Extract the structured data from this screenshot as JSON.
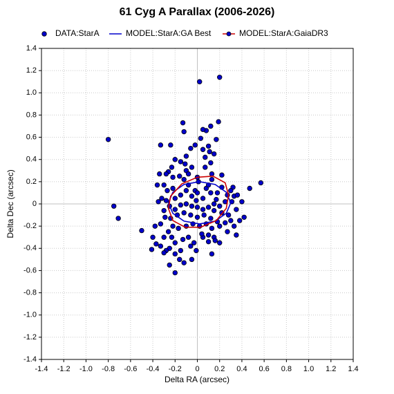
{
  "chart_data": {
    "type": "scatter",
    "title": "61 Cyg A Parallax (2006-2026)",
    "x_label": "Delta RA (arcsec)",
    "y_label": "Delta Dec (arcsec)",
    "xlim": [
      -1.4,
      1.4
    ],
    "ylim": [
      -1.4,
      1.4
    ],
    "xticks": [
      -1.4,
      -1.2,
      {
        "value": -1,
        "label": "-1.0"
      },
      -0.8,
      -0.6,
      -0.4,
      -0.2,
      0,
      0.2,
      0.4,
      0.6,
      0.8,
      {
        "value": 1,
        "label": "1.0"
      },
      1.2,
      1.4
    ],
    "yticks": [
      -1.4,
      -1.2,
      {
        "value": -1,
        "label": "-1.0"
      },
      -0.8,
      -0.6,
      -0.4,
      -0.2,
      0,
      0.2,
      0.4,
      0.6,
      0.8,
      {
        "value": 1,
        "label": "1.0"
      },
      1.2,
      1.4
    ],
    "grid": true,
    "legend": "top",
    "series": [
      {
        "name": "DATA:StarA",
        "type": "scatter",
        "color": "#0000cc",
        "x": [
          0.02,
          0.2,
          -0.8,
          -0.75,
          -0.71,
          0.57,
          0.47,
          0.4,
          -0.5,
          -0.41,
          -0.2,
          -0.12,
          -0.25,
          -0.16,
          0.35,
          0.42,
          0.38,
          0.19,
          0.12,
          0.08,
          0.05,
          -0.13,
          -0.12,
          -0.33,
          -0.24,
          0.17,
          0.03,
          0.1,
          0.05,
          -0.02,
          0.15,
          -0.06,
          0.11,
          0.07,
          0.12,
          -0.1,
          -0.15,
          -0.2,
          -0.11,
          -0.05,
          0.07,
          -0.1,
          -0.23,
          -0.26,
          -0.28,
          -0.16,
          -0.08,
          0.13,
          0.13,
          0.01,
          0,
          -0.36,
          -0.3,
          -0.27,
          -0.22,
          -0.12,
          -0.02,
          0.22,
          0.27,
          0.32,
          0.3,
          0.33,
          0.36,
          0.31,
          0.25,
          0.17,
          0.12,
          0.05,
          0,
          -0.05,
          -0.1,
          -0.15,
          -0.2,
          -0.28,
          -0.32,
          -0.35,
          -0.3,
          -0.25,
          -0.2,
          -0.15,
          -0.1,
          -0.05,
          0,
          0.05,
          0.1,
          0.15,
          0.2,
          0.22,
          0.28,
          0.35,
          0.33,
          0.3,
          0.25,
          0.18,
          0.12,
          0.06,
          0,
          -0.06,
          -0.12,
          -0.18,
          -0.24,
          -0.29,
          -0.33,
          -0.38,
          -0.4,
          -0.37,
          -0.33,
          -0.3,
          -0.26,
          -0.22,
          -0.17,
          -0.1,
          -0.04,
          0.02,
          0.08,
          0.13,
          0.1,
          0.05,
          0.15,
          0.1,
          0.16,
          0.2,
          0.13,
          -0.03,
          -0.08,
          -0.13,
          -0.2,
          -0.25,
          -0.28,
          -0.3,
          -0.23,
          -0.15,
          -0.06,
          -0.01,
          -0.05,
          -0.2,
          0.04,
          0.2,
          0.27,
          0.15,
          0.08,
          -0.01,
          0.1,
          0.18,
          -0.08,
          -0.22,
          -0.34,
          0.22
        ],
        "values": [
          1.1,
          1.14,
          0.58,
          -0.02,
          -0.13,
          0.19,
          0.14,
          0.02,
          -0.24,
          -0.41,
          -0.62,
          -0.53,
          -0.55,
          -0.5,
          -0.28,
          -0.12,
          -0.15,
          0.74,
          0.7,
          0.66,
          0.67,
          0.73,
          0.65,
          0.53,
          0.53,
          0.58,
          0.59,
          0.52,
          0.49,
          0.53,
          0.45,
          0.5,
          0.47,
          0.42,
          0.37,
          0.43,
          0.38,
          0.4,
          0.36,
          0.33,
          0.33,
          0.3,
          0.33,
          0.29,
          0.27,
          0.25,
          0.27,
          0.27,
          0.22,
          0.2,
          0.24,
          0.17,
          0.17,
          0.12,
          0.14,
          0.22,
          0.12,
          0.15,
          0.08,
          0.15,
          0.12,
          0.07,
          0.08,
          0.02,
          0.02,
          0.04,
          0.1,
          0.05,
          0.1,
          0.07,
          0.12,
          0.08,
          0.05,
          0.03,
          0.05,
          0.02,
          -0.06,
          -0.02,
          -0.05,
          -0.01,
          0,
          -0.02,
          -0.03,
          -0.05,
          -0.03,
          -0.06,
          -0.02,
          -0.08,
          -0.1,
          -0.05,
          -0.2,
          -0.15,
          -0.17,
          -0.16,
          -0.13,
          -0.1,
          -0.12,
          -0.1,
          -0.08,
          -0.1,
          -0.13,
          -0.12,
          -0.18,
          -0.2,
          -0.3,
          -0.36,
          -0.38,
          -0.3,
          -0.25,
          -0.2,
          -0.22,
          -0.2,
          -0.18,
          -0.2,
          -0.18,
          -0.22,
          -0.28,
          -0.3,
          -0.3,
          -0.34,
          -0.33,
          -0.35,
          -0.45,
          -0.35,
          -0.3,
          -0.32,
          -0.35,
          -0.4,
          -0.42,
          -0.44,
          -0.3,
          -0.42,
          -0.38,
          -0.42,
          -0.5,
          -0.45,
          -0.27,
          -0.2,
          -0.25,
          0,
          0.14,
          0.03,
          0.17,
          0.1,
          0.17,
          0.24,
          0.27,
          0.26
        ]
      },
      {
        "name": "MODEL:StarA:GA Best",
        "type": "line",
        "color": "#0000cc",
        "x": [
          0.3,
          0.26,
          0.16,
          0.02,
          -0.12,
          -0.22,
          -0.26,
          -0.22,
          -0.12,
          0.02,
          0.16,
          0.26,
          0.3
        ],
        "values": [
          0.01,
          0.105,
          0.175,
          0.2,
          0.175,
          0.105,
          0.01,
          -0.085,
          -0.155,
          -0.18,
          -0.155,
          -0.085,
          0.01
        ]
      },
      {
        "name": "MODEL:StarA:GaiaDR3",
        "type": "line",
        "color": "#cc0000",
        "x": [
          0.28,
          0.25,
          0.14,
          0,
          -0.14,
          -0.24,
          -0.26,
          -0.22,
          -0.11,
          0.03,
          0.17,
          0.26,
          0.28
        ],
        "values": [
          0.08,
          0.19,
          0.25,
          0.24,
          0.18,
          0.07,
          -0.04,
          -0.15,
          -0.21,
          -0.21,
          -0.15,
          -0.04,
          0.08
        ]
      }
    ]
  }
}
